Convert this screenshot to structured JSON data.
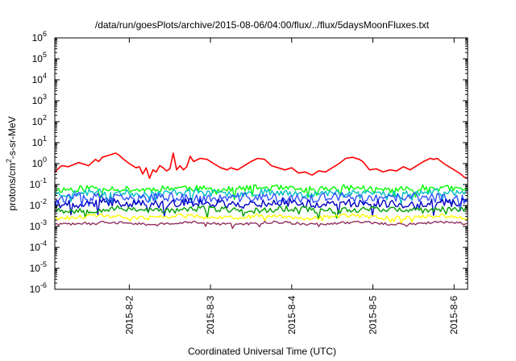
{
  "chart_data": {
    "type": "line",
    "title": "/data/run/goesPlots/archive/2015-08-06/04:00/flux/../flux/5daysMoonFluxes.txt",
    "xlabel": "Coordinated Universal Time (UTC)",
    "ylabel": "protons/cm²-s-sr-MeV",
    "ylabel_parts": {
      "pre": "protons/cm",
      "sup": "2",
      "post": "-s-sr-MeV"
    },
    "y_scale": "log",
    "ylim_exp": [
      -6,
      6
    ],
    "y_ticks": [
      {
        "base": "10",
        "exp": "-6"
      },
      {
        "base": "10",
        "exp": "-5"
      },
      {
        "base": "10",
        "exp": "-4"
      },
      {
        "base": "10",
        "exp": "-3"
      },
      {
        "base": "10",
        "exp": "-2"
      },
      {
        "base": "10",
        "exp": "-1"
      },
      {
        "base": "10",
        "exp": "0"
      },
      {
        "base": "10",
        "exp": "1"
      },
      {
        "base": "10",
        "exp": "2"
      },
      {
        "base": "10",
        "exp": "3"
      },
      {
        "base": "10",
        "exp": "4"
      },
      {
        "base": "10",
        "exp": "5"
      },
      {
        "base": "10",
        "exp": "6"
      }
    ],
    "x_start": "2015-08-01T02:00",
    "x_end": "2015-08-06T04:00",
    "x_ticks": [
      {
        "label": "2015-8-2",
        "date": "2015-08-02T00:00"
      },
      {
        "label": "2015-8-3",
        "date": "2015-08-03T00:00"
      },
      {
        "label": "2015-8-4",
        "date": "2015-08-04T00:00"
      },
      {
        "label": "2015-8-5",
        "date": "2015-08-05T00:00"
      },
      {
        "label": "2015-8-6",
        "date": "2015-08-06T00:00"
      }
    ],
    "grid": false,
    "legend": "none",
    "series": [
      {
        "color": "#ff0000",
        "log_points": [
          [
            "2015-08-01T02:00",
            -0.4
          ],
          [
            "2015-08-01T04:00",
            -0.1
          ],
          [
            "2015-08-01T06:00",
            -0.15
          ],
          [
            "2015-08-01T09:00",
            0.05
          ],
          [
            "2015-08-01T12:00",
            -0.1
          ],
          [
            "2015-08-01T14:00",
            0.2
          ],
          [
            "2015-08-01T15:00",
            0.1
          ],
          [
            "2015-08-01T16:00",
            0.3
          ],
          [
            "2015-08-01T18:00",
            0.4
          ],
          [
            "2015-08-01T20:00",
            0.5
          ],
          [
            "2015-08-01T21:00",
            0.4
          ],
          [
            "2015-08-01T22:00",
            0.25
          ],
          [
            "2015-08-02T00:00",
            0.0
          ],
          [
            "2015-08-02T02:00",
            -0.2
          ],
          [
            "2015-08-02T03:00",
            -0.15
          ],
          [
            "2015-08-02T04:00",
            -0.5
          ],
          [
            "2015-08-02T05:00",
            -0.2
          ],
          [
            "2015-08-02T06:00",
            -0.7
          ],
          [
            "2015-08-02T07:00",
            -0.3
          ],
          [
            "2015-08-02T08:00",
            -0.4
          ],
          [
            "2015-08-02T09:00",
            -0.1
          ],
          [
            "2015-08-02T10:00",
            -0.2
          ],
          [
            "2015-08-02T11:00",
            -0.35
          ],
          [
            "2015-08-02T12:00",
            -0.25
          ],
          [
            "2015-08-02T13:00",
            0.5
          ],
          [
            "2015-08-02T14:00",
            -0.3
          ],
          [
            "2015-08-02T15:00",
            -0.1
          ],
          [
            "2015-08-02T16:00",
            -0.3
          ],
          [
            "2015-08-02T17:00",
            -0.15
          ],
          [
            "2015-08-02T18:00",
            0.35
          ],
          [
            "2015-08-02T19:00",
            0.1
          ],
          [
            "2015-08-02T21:00",
            0.25
          ],
          [
            "2015-08-02T23:00",
            0.2
          ],
          [
            "2015-08-03T00:00",
            0.1
          ],
          [
            "2015-08-03T01:00",
            0.0
          ],
          [
            "2015-08-03T03:00",
            -0.2
          ],
          [
            "2015-08-03T05:00",
            -0.3
          ],
          [
            "2015-08-03T06:00",
            -0.2
          ],
          [
            "2015-08-03T08:00",
            -0.3
          ],
          [
            "2015-08-03T10:00",
            -0.1
          ],
          [
            "2015-08-03T12:00",
            0.1
          ],
          [
            "2015-08-03T14:00",
            0.25
          ],
          [
            "2015-08-03T16:00",
            0.2
          ],
          [
            "2015-08-03T18:00",
            -0.1
          ],
          [
            "2015-08-03T20:00",
            -0.2
          ],
          [
            "2015-08-03T22:00",
            -0.3
          ],
          [
            "2015-08-04T00:00",
            -0.2
          ],
          [
            "2015-08-04T02:00",
            -0.45
          ],
          [
            "2015-08-04T04:00",
            -0.4
          ],
          [
            "2015-08-04T06:00",
            -0.55
          ],
          [
            "2015-08-04T08:00",
            -0.35
          ],
          [
            "2015-08-04T10:00",
            -0.4
          ],
          [
            "2015-08-04T12:00",
            -0.2
          ],
          [
            "2015-08-04T14:00",
            0.0
          ],
          [
            "2015-08-04T16:00",
            0.25
          ],
          [
            "2015-08-04T18:00",
            0.3
          ],
          [
            "2015-08-04T20:00",
            0.2
          ],
          [
            "2015-08-04T21:00",
            0.1
          ],
          [
            "2015-08-04T23:00",
            -0.3
          ],
          [
            "2015-08-05T01:00",
            -0.25
          ],
          [
            "2015-08-05T03:00",
            -0.4
          ],
          [
            "2015-08-05T05:00",
            -0.3
          ],
          [
            "2015-08-05T07:00",
            -0.35
          ],
          [
            "2015-08-05T09:00",
            -0.15
          ],
          [
            "2015-08-05T11:00",
            -0.3
          ],
          [
            "2015-08-05T13:00",
            -0.1
          ],
          [
            "2015-08-05T15:00",
            0.1
          ],
          [
            "2015-08-05T17:00",
            0.25
          ],
          [
            "2015-08-05T18:00",
            0.2
          ],
          [
            "2015-08-05T19:00",
            0.25
          ],
          [
            "2015-08-05T21:00",
            0.0
          ],
          [
            "2015-08-05T23:00",
            -0.2
          ],
          [
            "2015-08-06T01:00",
            -0.4
          ],
          [
            "2015-08-06T02:00",
            -0.5
          ],
          [
            "2015-08-06T03:00",
            -0.65
          ],
          [
            "2015-08-06T04:00",
            -0.7
          ]
        ]
      },
      {
        "color": "#00ff00",
        "log_level": -1.2,
        "amp": 0.15,
        "seed": 11
      },
      {
        "color": "#00c0c0",
        "log_level": -1.4,
        "amp": 0.16,
        "seed": 23
      },
      {
        "color": "#3050ff",
        "log_level": -1.65,
        "amp": 0.22,
        "seed": 37
      },
      {
        "color": "#0000c0",
        "log_level": -1.9,
        "amp": 0.2,
        "seed": 41
      },
      {
        "color": "#00a000",
        "log_level": -2.2,
        "amp": 0.14,
        "seed": 53
      },
      {
        "color": "#ffff00",
        "log_level": -2.55,
        "amp": 0.1,
        "seed": 61
      },
      {
        "color": "#903060",
        "log_level": -2.85,
        "amp": 0.06,
        "seed": 73
      }
    ]
  }
}
